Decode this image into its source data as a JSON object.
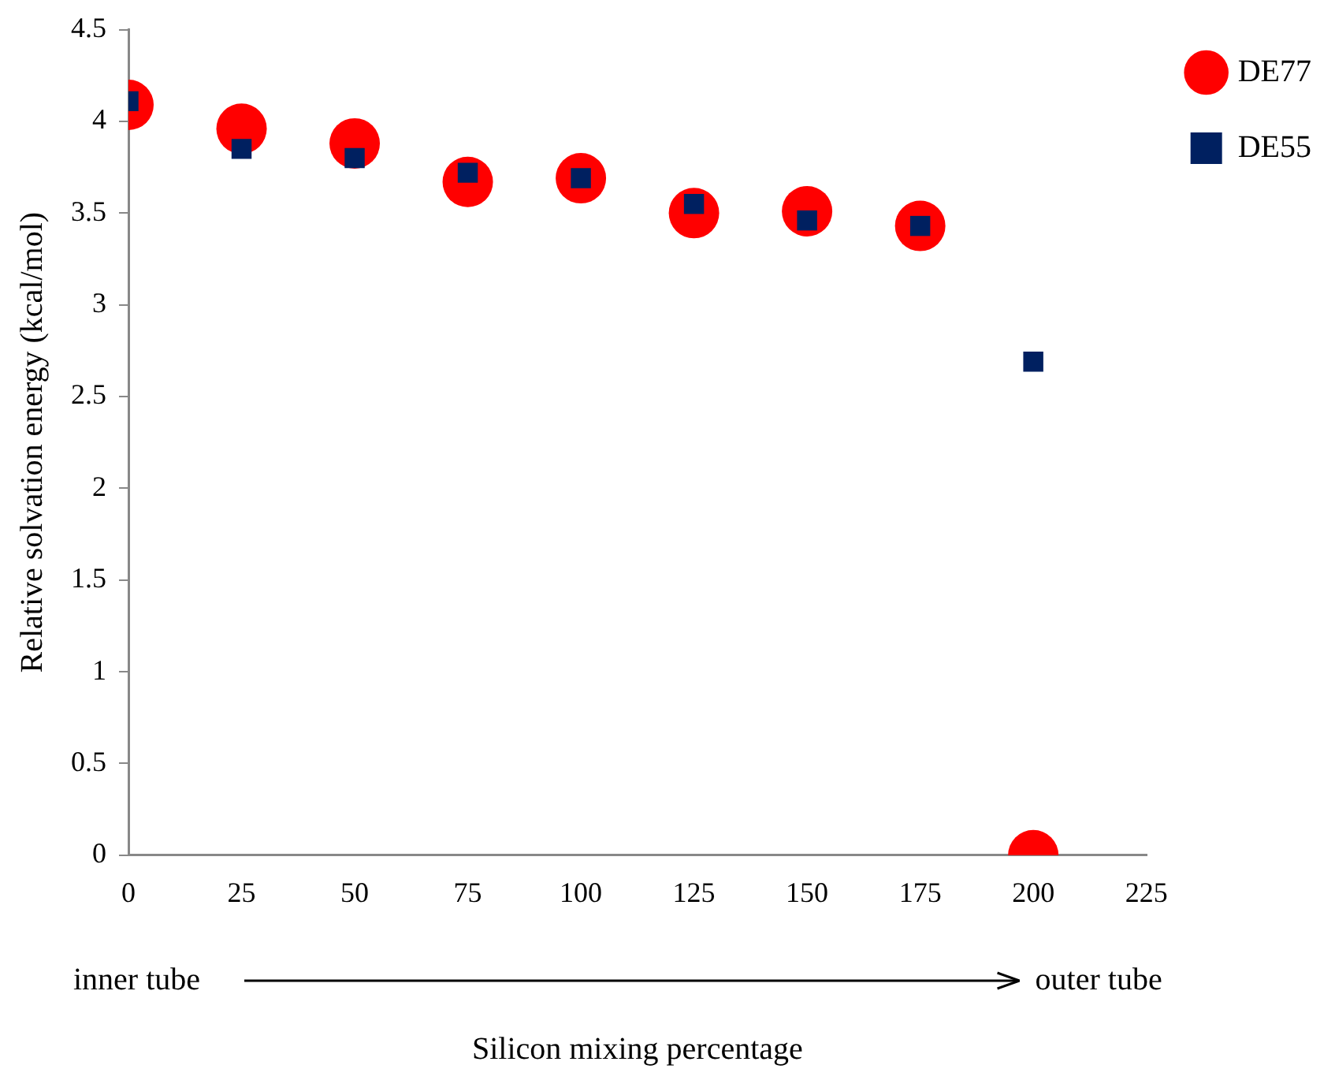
{
  "chart_data": {
    "type": "scatter",
    "xlabel": "Silicon mixing percentage",
    "ylabel": "Relative solvation energy (kcal/mol)",
    "x": [
      0,
      25,
      50,
      75,
      100,
      125,
      150,
      175,
      200
    ],
    "series": [
      {
        "name": "DE77",
        "color": "#ff0000",
        "marker": "circle",
        "values": [
          4.09,
          3.96,
          3.88,
          3.67,
          3.69,
          3.5,
          3.51,
          3.43,
          0
        ]
      },
      {
        "name": "DE55",
        "color": "#002060",
        "marker": "square",
        "values": [
          4.11,
          3.85,
          3.8,
          3.72,
          3.69,
          3.55,
          3.46,
          3.43,
          2.69
        ]
      }
    ],
    "xlim": [
      0,
      225
    ],
    "xticks": [
      0,
      25,
      50,
      75,
      100,
      125,
      150,
      175,
      200,
      225
    ],
    "ylim": [
      0,
      4.5
    ],
    "yticks": [
      0,
      0.5,
      1,
      1.5,
      2,
      2.5,
      3,
      3.5,
      4,
      4.5
    ],
    "grid": false,
    "legend": "top right",
    "annotations": [
      "inner tube",
      "outer tube"
    ]
  }
}
